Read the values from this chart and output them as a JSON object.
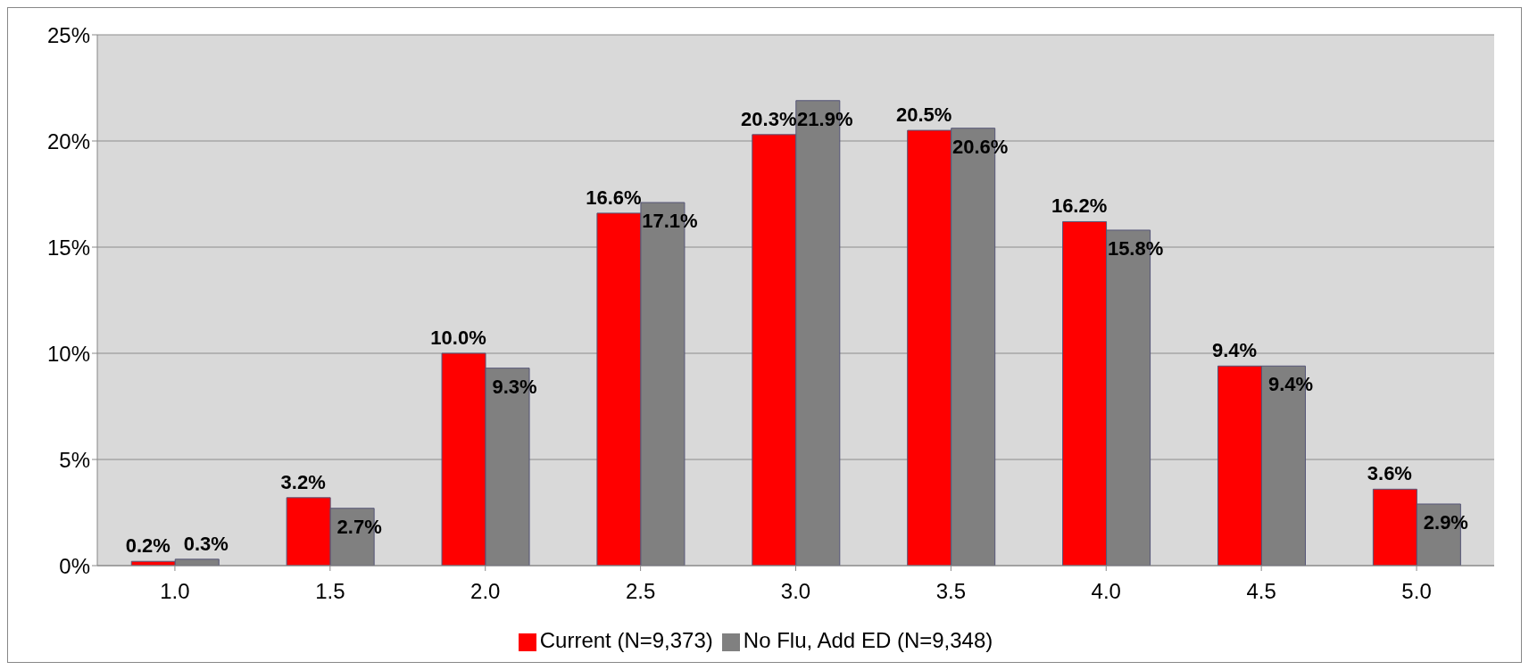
{
  "chart_data": {
    "type": "bar",
    "categories": [
      "1.0",
      "1.5",
      "2.0",
      "2.5",
      "3.0",
      "3.5",
      "4.0",
      "4.5",
      "5.0"
    ],
    "series": [
      {
        "name": "Current (N=9,373)",
        "color": "#ff0000",
        "values": [
          0.2,
          3.2,
          10.0,
          16.6,
          20.3,
          20.5,
          16.2,
          9.4,
          3.6
        ],
        "value_labels": [
          "0.2%",
          "3.2%",
          "10.0%",
          "16.6%",
          "20.3%",
          "20.5%",
          "16.2%",
          "9.4%",
          "3.6%"
        ]
      },
      {
        "name": "No Flu, Add ED (N=9,348)",
        "color": "#808080",
        "values": [
          0.3,
          2.7,
          9.3,
          17.1,
          21.9,
          20.6,
          15.8,
          9.4,
          2.9
        ],
        "value_labels": [
          "0.3%",
          "2.7%",
          "9.3%",
          "17.1%",
          "21.9%",
          "20.6%",
          "15.8%",
          "9.4%",
          "2.9%"
        ]
      }
    ],
    "ylim": [
      0,
      25
    ],
    "yticks": [
      {
        "value": 0,
        "label": "0%"
      },
      {
        "value": 5,
        "label": "5%"
      },
      {
        "value": 10,
        "label": "10%"
      },
      {
        "value": 15,
        "label": "15%"
      },
      {
        "value": 20,
        "label": "20%"
      },
      {
        "value": 25,
        "label": "25%"
      }
    ],
    "grid": "y",
    "legend": "bottom"
  }
}
